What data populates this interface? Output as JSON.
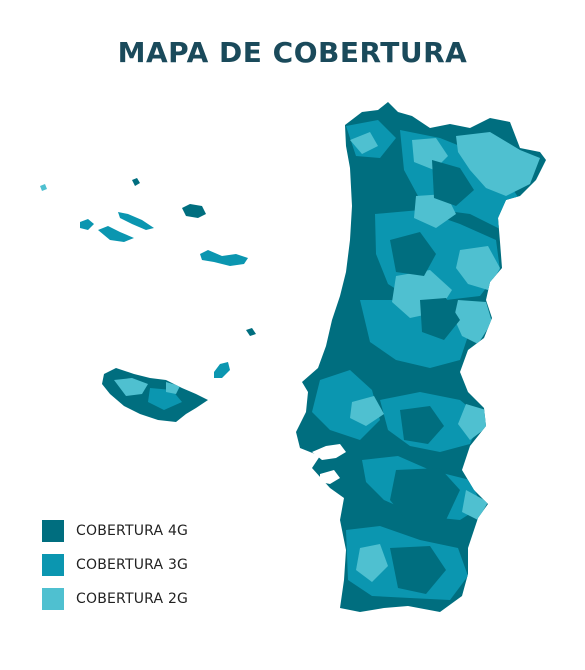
{
  "map": {
    "title": "MAPA DE COBERTURA"
  },
  "legend": [
    {
      "label": "COBERTURA 4G",
      "color": "#006e7f"
    },
    {
      "label": "COBERTURA 3G",
      "color": "#0b96b0"
    },
    {
      "label": "COBERTURA 2G",
      "color": "#4fc0d0"
    }
  ]
}
